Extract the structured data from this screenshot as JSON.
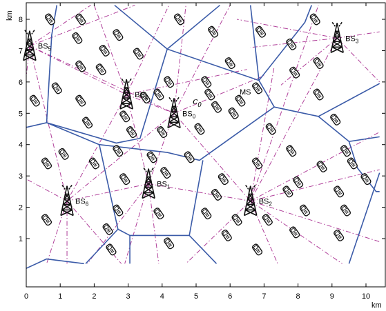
{
  "figure": {
    "x_unit": "km",
    "y_unit": "km",
    "xlim": [
      0,
      10.4
    ],
    "ylim": [
      0.2,
      8.45
    ],
    "x_ticks": [
      "0",
      "1",
      "2",
      "3",
      "4",
      "5",
      "6",
      "7",
      "8",
      "9",
      "10"
    ],
    "y_ticks": [
      "1",
      "2",
      "3",
      "4",
      "5",
      "6",
      "7",
      "8"
    ],
    "cell_label": "c",
    "cell_label_sub": "0",
    "ms_label": "MS",
    "colors": {
      "voronoi": "#3b5ba8",
      "link": "#b0409a",
      "frame": "#000000"
    }
  },
  "base_stations": [
    {
      "name": "BS",
      "sub": "0",
      "x": 4.35,
      "y": 5.0
    },
    {
      "name": "BS",
      "sub": "1",
      "x": 3.6,
      "y": 2.75
    },
    {
      "name": "BS",
      "sub": "2",
      "x": 6.6,
      "y": 2.2
    },
    {
      "name": "BS",
      "sub": "3",
      "x": 9.15,
      "y": 7.4
    },
    {
      "name": "BS",
      "sub": "4",
      "x": 2.95,
      "y": 5.6
    },
    {
      "name": "BS",
      "sub": "5",
      "x": 0.1,
      "y": 7.15
    },
    {
      "name": "BS",
      "sub": "6",
      "x": 1.2,
      "y": 2.2
    }
  ],
  "mobiles": [
    [
      0.7,
      8.0
    ],
    [
      1.6,
      8.0
    ],
    [
      4.5,
      8.0
    ],
    [
      8.5,
      8.0
    ],
    [
      1.5,
      7.4
    ],
    [
      2.7,
      7.5
    ],
    [
      5.5,
      7.6
    ],
    [
      6.9,
      7.6
    ],
    [
      2.3,
      7.0
    ],
    [
      3.3,
      6.9
    ],
    [
      7.8,
      7.2
    ],
    [
      1.6,
      6.5
    ],
    [
      2.2,
      6.4
    ],
    [
      6.0,
      6.6
    ],
    [
      8.6,
      6.6
    ],
    [
      0.9,
      5.8
    ],
    [
      4.2,
      6.0
    ],
    [
      5.3,
      6.0
    ],
    [
      7.9,
      6.3
    ],
    [
      0.25,
      5.4
    ],
    [
      1.6,
      5.4
    ],
    [
      3.5,
      5.5
    ],
    [
      5.4,
      5.6
    ],
    [
      6.3,
      5.4
    ],
    [
      6.8,
      5.8
    ],
    [
      8.6,
      5.6
    ],
    [
      3.9,
      5.6
    ],
    [
      2.9,
      4.9
    ],
    [
      1.8,
      4.7
    ],
    [
      3.1,
      4.4
    ],
    [
      5.6,
      5.2
    ],
    [
      6.1,
      5.0
    ],
    [
      9.1,
      4.8
    ],
    [
      4.0,
      4.4
    ],
    [
      5.1,
      4.5
    ],
    [
      7.2,
      4.5
    ],
    [
      1.1,
      3.7
    ],
    [
      2.7,
      3.8
    ],
    [
      3.7,
      3.6
    ],
    [
      4.8,
      3.6
    ],
    [
      7.8,
      3.8
    ],
    [
      9.4,
      3.8
    ],
    [
      0.6,
      3.4
    ],
    [
      2.0,
      3.4
    ],
    [
      4.1,
      3.1
    ],
    [
      6.8,
      3.4
    ],
    [
      8.7,
      3.3
    ],
    [
      9.6,
      3.4
    ],
    [
      2.9,
      2.9
    ],
    [
      5.8,
      2.9
    ],
    [
      8.0,
      2.8
    ],
    [
      10.0,
      2.9
    ],
    [
      5.6,
      2.4
    ],
    [
      7.7,
      2.5
    ],
    [
      9.2,
      2.5
    ],
    [
      2.7,
      1.9
    ],
    [
      3.9,
      1.8
    ],
    [
      5.3,
      1.8
    ],
    [
      6.2,
      1.6
    ],
    [
      7.1,
      1.6
    ],
    [
      8.2,
      1.9
    ],
    [
      9.4,
      1.9
    ],
    [
      0.6,
      1.6
    ],
    [
      2.4,
      1.3
    ],
    [
      5.9,
      1.1
    ],
    [
      7.9,
      1.2
    ],
    [
      9.2,
      1.1
    ],
    [
      2.5,
      0.65
    ],
    [
      4.2,
      0.85
    ],
    [
      6.8,
      0.65
    ]
  ],
  "voronoi_edges": [
    [
      [
        0.6,
        4.7
      ],
      [
        2.2,
        4.0
      ]
    ],
    [
      [
        2.2,
        4.0
      ],
      [
        4.1,
        3.7
      ]
    ],
    [
      [
        4.1,
        3.7
      ],
      [
        5.1,
        3.5
      ]
    ],
    [
      [
        5.1,
        3.5
      ],
      [
        7.3,
        5.2
      ]
    ],
    [
      [
        7.3,
        5.2
      ],
      [
        8.6,
        4.9
      ]
    ],
    [
      [
        8.6,
        4.9
      ],
      [
        9.5,
        4.1
      ]
    ],
    [
      [
        9.5,
        4.1
      ],
      [
        10.4,
        4.2
      ]
    ],
    [
      [
        0.6,
        4.7
      ],
      [
        0.0,
        4.55
      ]
    ],
    [
      [
        0.6,
        4.7
      ],
      [
        0.75,
        7.5
      ]
    ],
    [
      [
        0.75,
        7.5
      ],
      [
        0.9,
        8.45
      ]
    ],
    [
      [
        2.2,
        4.0
      ],
      [
        1.7,
        0.2
      ]
    ],
    [
      [
        2.2,
        4.0
      ],
      [
        2.6,
        1.3
      ]
    ],
    [
      [
        2.6,
        1.3
      ],
      [
        1.7,
        0.2
      ]
    ],
    [
      [
        2.6,
        1.3
      ],
      [
        3.0,
        1.1
      ]
    ],
    [
      [
        3.0,
        1.1
      ],
      [
        4.8,
        1.1
      ]
    ],
    [
      [
        4.8,
        1.1
      ],
      [
        5.6,
        0.2
      ]
    ],
    [
      [
        3.0,
        1.1
      ],
      [
        3.0,
        0.2
      ]
    ],
    [
      [
        4.8,
        1.1
      ],
      [
        5.2,
        3.5
      ]
    ],
    [
      [
        4.2,
        4.1
      ],
      [
        4.2,
        7.0
      ]
    ],
    [
      [
        4.2,
        7.0
      ],
      [
        2.6,
        8.45
      ]
    ],
    [
      [
        4.2,
        7.0
      ],
      [
        5.7,
        8.45
      ]
    ],
    [
      [
        4.2,
        7.0
      ],
      [
        6.8,
        6.1
      ]
    ],
    [
      [
        6.8,
        6.1
      ],
      [
        7.0,
        6.0
      ]
    ],
    [
      [
        7.0,
        6.0
      ],
      [
        7.3,
        5.2
      ]
    ],
    [
      [
        6.8,
        6.1
      ],
      [
        6.6,
        8.45
      ]
    ],
    [
      [
        6.6,
        7.1
      ],
      [
        8.0,
        7.8
      ]
    ],
    [
      [
        8.0,
        7.8
      ],
      [
        8.4,
        8.45
      ]
    ],
    [
      [
        7.3,
        5.0
      ],
      [
        10.4,
        6.0
      ]
    ],
    [
      [
        9.5,
        4.1
      ],
      [
        9.7,
        3.3
      ]
    ],
    [
      [
        9.7,
        3.3
      ],
      [
        10.3,
        2.5
      ]
    ],
    [
      [
        10.3,
        2.5
      ],
      [
        10.4,
        2.5
      ]
    ],
    [
      [
        9.5,
        0.2
      ],
      [
        10.4,
        3.1
      ]
    ],
    [
      [
        0.0,
        0.0
      ],
      [
        1.2,
        0.7
      ]
    ]
  ],
  "voronoi_polyline": [
    [
      [
        0.0,
        4.55
      ],
      [
        0.6,
        4.7
      ],
      [
        2.15,
        4.0
      ],
      [
        4.15,
        3.75
      ],
      [
        5.1,
        3.5
      ],
      [
        7.3,
        5.2
      ],
      [
        8.6,
        4.9
      ],
      [
        9.5,
        4.1
      ],
      [
        10.4,
        4.25
      ]
    ],
    [
      [
        0.0,
        0.05
      ],
      [
        0.6,
        0.35
      ],
      [
        1.7,
        0.2
      ]
    ],
    [
      [
        0.6,
        4.7
      ],
      [
        0.75,
        7.5
      ],
      [
        0.9,
        8.45
      ]
    ],
    [
      [
        2.15,
        4.0
      ],
      [
        2.7,
        1.3
      ],
      [
        1.75,
        0.2
      ]
    ],
    [
      [
        2.7,
        1.3
      ],
      [
        3.05,
        1.1
      ],
      [
        4.8,
        1.1
      ],
      [
        5.6,
        0.2
      ]
    ],
    [
      [
        3.05,
        1.1
      ],
      [
        3.05,
        0.2
      ]
    ],
    [
      [
        4.8,
        1.1
      ],
      [
        5.2,
        3.5
      ]
    ],
    [
      [
        0.6,
        4.7
      ],
      [
        2.65,
        4.05
      ],
      [
        3.35,
        4.2
      ],
      [
        4.15,
        7.05
      ],
      [
        6.85,
        6.05
      ],
      [
        7.3,
        5.2
      ]
    ],
    [
      [
        4.15,
        7.05
      ],
      [
        2.6,
        8.45
      ]
    ],
    [
      [
        4.15,
        7.05
      ],
      [
        5.7,
        8.45
      ]
    ],
    [
      [
        6.85,
        6.05
      ],
      [
        6.6,
        8.45
      ]
    ],
    [
      [
        6.85,
        6.05
      ],
      [
        8.2,
        7.9
      ],
      [
        8.4,
        8.45
      ]
    ],
    [
      [
        8.6,
        4.9
      ],
      [
        10.4,
        5.95
      ]
    ],
    [
      [
        9.5,
        4.1
      ],
      [
        9.75,
        3.25
      ],
      [
        10.3,
        2.5
      ],
      [
        10.4,
        2.5
      ]
    ],
    [
      [
        9.5,
        0.2
      ],
      [
        10.4,
        3.1
      ]
    ]
  ],
  "links": [
    [
      [
        0.1,
        7.15
      ],
      [
        2.95,
        5.6
      ]
    ],
    [
      [
        0.1,
        7.15
      ],
      [
        3.2,
        8.45
      ]
    ],
    [
      [
        0.1,
        7.15
      ],
      [
        1.2,
        2.2
      ]
    ],
    [
      [
        0.1,
        7.15
      ],
      [
        -0.1,
        5.2
      ]
    ],
    [
      [
        0.1,
        7.15
      ],
      [
        1.9,
        8.45
      ]
    ],
    [
      [
        0.1,
        7.15
      ],
      [
        4.35,
        5.0
      ]
    ],
    [
      [
        2.95,
        5.6
      ],
      [
        4.35,
        5.0
      ]
    ],
    [
      [
        2.95,
        5.6
      ],
      [
        4.2,
        8.45
      ]
    ],
    [
      [
        2.95,
        5.6
      ],
      [
        3.6,
        2.75
      ]
    ],
    [
      [
        2.95,
        5.6
      ],
      [
        1.2,
        2.2
      ]
    ],
    [
      [
        2.95,
        5.6
      ],
      [
        2.0,
        8.45
      ]
    ],
    [
      [
        2.95,
        5.6
      ],
      [
        6.5,
        6.4
      ]
    ],
    [
      [
        4.35,
        5.0
      ],
      [
        4.7,
        8.45
      ]
    ],
    [
      [
        4.35,
        5.0
      ],
      [
        6.0,
        8.45
      ]
    ],
    [
      [
        4.35,
        5.0
      ],
      [
        6.6,
        2.2
      ]
    ],
    [
      [
        4.35,
        5.0
      ],
      [
        3.6,
        2.75
      ]
    ],
    [
      [
        4.35,
        5.0
      ],
      [
        7.0,
        6.2
      ]
    ],
    [
      [
        4.35,
        5.0
      ],
      [
        1.2,
        2.2
      ]
    ],
    [
      [
        3.6,
        2.75
      ],
      [
        6.6,
        2.2
      ]
    ],
    [
      [
        3.6,
        2.75
      ],
      [
        1.2,
        2.2
      ]
    ],
    [
      [
        3.6,
        2.75
      ],
      [
        2.9,
        0.2
      ]
    ],
    [
      [
        3.6,
        2.75
      ],
      [
        3.9,
        0.2
      ]
    ],
    [
      [
        3.6,
        2.75
      ],
      [
        1.8,
        0.2
      ]
    ],
    [
      [
        1.2,
        2.2
      ],
      [
        0.6,
        0.2
      ]
    ],
    [
      [
        1.2,
        2.2
      ],
      [
        1.2,
        0.2
      ]
    ],
    [
      [
        1.2,
        2.2
      ],
      [
        2.8,
        0.2
      ]
    ],
    [
      [
        1.2,
        2.2
      ],
      [
        0.0,
        2.9
      ]
    ],
    [
      [
        6.6,
        2.2
      ],
      [
        9.15,
        7.4
      ]
    ],
    [
      [
        6.6,
        2.2
      ],
      [
        8.6,
        8.45
      ]
    ],
    [
      [
        6.6,
        2.2
      ],
      [
        10.4,
        4.4
      ]
    ],
    [
      [
        6.6,
        2.2
      ],
      [
        10.4,
        3.2
      ]
    ],
    [
      [
        6.6,
        2.2
      ],
      [
        10.4,
        0.9
      ]
    ],
    [
      [
        6.6,
        2.2
      ],
      [
        9.3,
        0.2
      ]
    ],
    [
      [
        6.6,
        2.2
      ],
      [
        7.4,
        0.2
      ]
    ],
    [
      [
        6.6,
        2.2
      ],
      [
        4.7,
        0.2
      ]
    ],
    [
      [
        6.6,
        2.2
      ],
      [
        7.3,
        6.5
      ]
    ],
    [
      [
        9.15,
        7.4
      ],
      [
        6.2,
        8.0
      ]
    ],
    [
      [
        9.15,
        7.4
      ],
      [
        10.4,
        7.6
      ]
    ],
    [
      [
        9.15,
        7.4
      ],
      [
        7.5,
        5.9
      ]
    ],
    [
      [
        9.15,
        7.4
      ],
      [
        10.4,
        6.0
      ]
    ],
    [
      [
        9.15,
        7.4
      ],
      [
        6.6,
        7.1
      ]
    ]
  ]
}
